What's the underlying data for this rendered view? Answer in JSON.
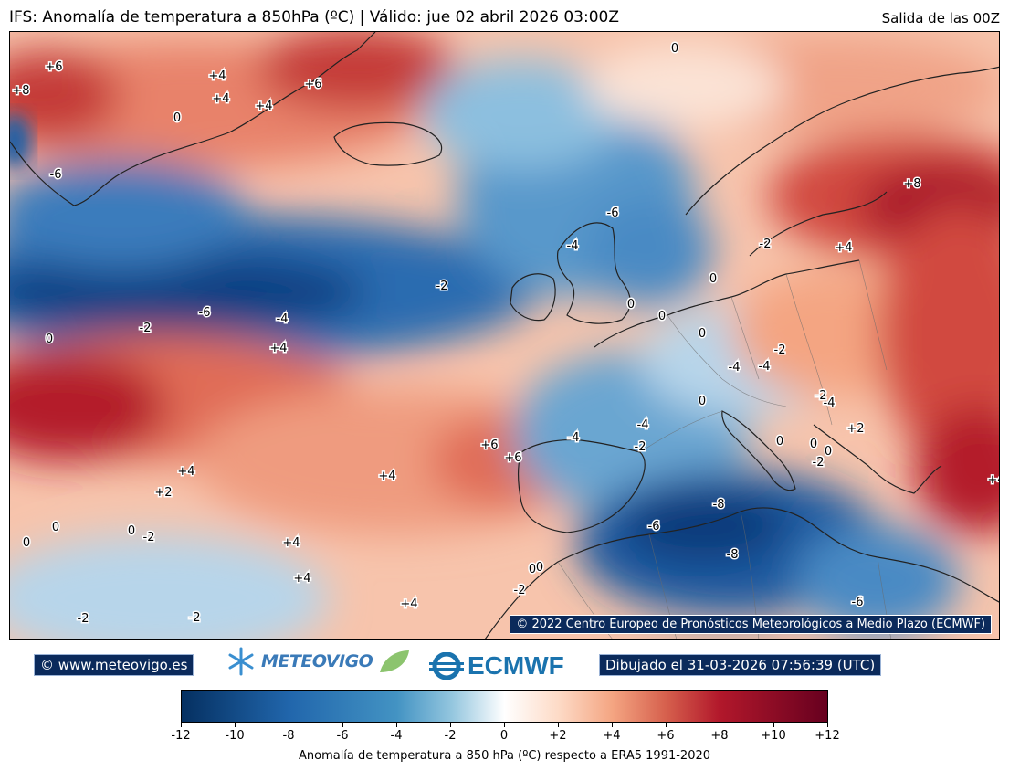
{
  "header": {
    "title": "IFS: Anomalía de temperatura a 850hPa  (ºC) | Válido: jue 02 abril 2026 03:00Z",
    "run": "Salida de las 00Z"
  },
  "map": {
    "copyright": "© 2022 Centro Europeo de Pronósticos Meteorológicos a Medio Plazo (ECMWF)",
    "contour_labels": [
      "+6",
      "+8",
      "+4",
      "+6",
      "+4",
      "+4",
      "0",
      "0",
      "-6",
      "-6",
      "-4",
      "-2",
      "0",
      "-6",
      "-2",
      "-6",
      "-4",
      "+4",
      "0",
      "0",
      "-2",
      "+8",
      "+4",
      "-2",
      "0",
      "0",
      "0",
      "-2",
      "-4",
      "-4",
      "-4",
      "0",
      "+2",
      "-4",
      "-2",
      "0",
      "0",
      "-2",
      "-4",
      "-8",
      "-6",
      "-8",
      "-6",
      "+6",
      "+6",
      "+4",
      "+4",
      "+2",
      "+4",
      "0",
      "0",
      "0",
      "-2",
      "+4",
      "+4",
      "+4",
      "0",
      "-2",
      "-2",
      "-2",
      "0"
    ],
    "colors": {
      "cold_max": "#053061",
      "warm_max": "#67001f",
      "neutral": "#ffffff",
      "coast": "#222222"
    }
  },
  "footer": {
    "website": "© www.meteovigo.es",
    "logo_meteovigo": "METEOVIGO",
    "logo_ecmwf": "ECMWF",
    "drawn": "Dibujado el 31-03-2026 07:56:39 (UTC)"
  },
  "colorbar": {
    "ticks": [
      "-12",
      "-10",
      "-8",
      "-6",
      "-4",
      "-2",
      "0",
      "+2",
      "+4",
      "+6",
      "+8",
      "+10",
      "+12"
    ],
    "label": "Anomalía de temperatura a 850 hPa (ºC) respecto a ERA5 1991-2020",
    "min": -12,
    "max": 12
  }
}
